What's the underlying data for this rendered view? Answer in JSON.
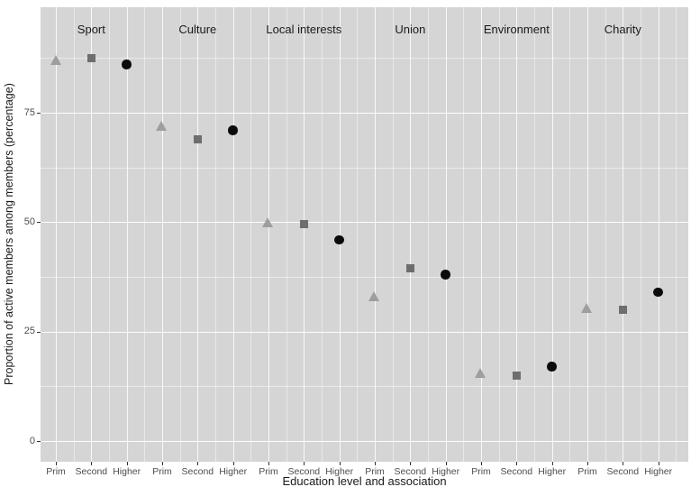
{
  "chart_data": {
    "type": "scatter",
    "title": "",
    "xlabel": "Education level and association",
    "ylabel": "Proportion of active members among members (percentage)",
    "x_levels": [
      "Prim",
      "Second",
      "Higher"
    ],
    "groups": [
      "Sport",
      "Culture",
      "Local interests",
      "Union",
      "Environment",
      "Charity"
    ],
    "y_ticks": [
      0,
      25,
      50,
      75
    ],
    "y_minor_gridlines": [
      12.5,
      37.5,
      62.5,
      87.5
    ],
    "ylim": [
      -4.7,
      99.1
    ],
    "grid": true,
    "legend": "none",
    "series": [
      {
        "name": "Prim",
        "marker": "triangle",
        "color": "#9e9e9e",
        "values": [
          87,
          72,
          50,
          33,
          15.5,
          30.5
        ]
      },
      {
        "name": "Second",
        "marker": "square",
        "color": "#6e6e6e",
        "values": [
          87.5,
          69,
          49.5,
          39.5,
          15,
          30
        ]
      },
      {
        "name": "Higher",
        "marker": "circle",
        "color": "#0b0b0b",
        "values": [
          86,
          71,
          46,
          38,
          17,
          34
        ]
      }
    ],
    "colors": {
      "panel_bg": "#d5d5d5",
      "grid": "#ffffff",
      "tick_text": "#4d4d4d",
      "label_text": "#1a1a1a"
    }
  }
}
